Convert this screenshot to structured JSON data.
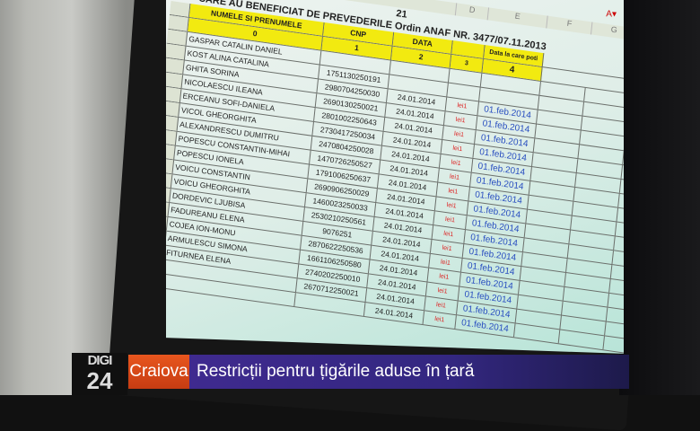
{
  "broadcast": {
    "channel_logo": "DIGI 24",
    "location": "Craiova",
    "headline": "Restricții pentru țigările aduse în țară"
  },
  "spreadsheet": {
    "cell_value": "21",
    "title": "CARE AU BENEFICIAT DE PREVEDERILE Ordin ANAF NR. 3477/07.11.2013",
    "column_letters": [
      "D",
      "E",
      "F",
      "G",
      "H"
    ],
    "headers": [
      "NUMELE SI PRENUMELE",
      "CNP",
      "DATA",
      "",
      "Data la care poti"
    ],
    "header_numbers": [
      "0",
      "1",
      "2",
      "3",
      "4"
    ],
    "rows": [
      {
        "name": "GASPAR CATALIN DANIEL",
        "cnp": "",
        "date": "",
        "flag": "",
        "date4": ""
      },
      {
        "name": "KOST ALINA CATALINA",
        "cnp": "1751130250191",
        "date": "",
        "flag": "",
        "date4": ""
      },
      {
        "name": "GHITA SORINA",
        "cnp": "2980704250030",
        "date": "24.01.2014",
        "flag": "lei1",
        "date4": "01.feb.2014"
      },
      {
        "name": "NICOLAESCU ILEANA",
        "cnp": "2690130250021",
        "date": "24.01.2014",
        "flag": "lei1",
        "date4": "01.feb.2014"
      },
      {
        "name": "ERCEANU SOFI-DANIELA",
        "cnp": "2801002250643",
        "date": "24.01.2014",
        "flag": "lei1",
        "date4": "01.feb.2014"
      },
      {
        "name": "VICOL GHEORGHITA",
        "cnp": "2730417250034",
        "date": "24.01.2014",
        "flag": "lei1",
        "date4": "01.feb.2014"
      },
      {
        "name": "ALEXANDRESCU DUMITRU",
        "cnp": "2470804250028",
        "date": "24.01.2014",
        "flag": "lei1",
        "date4": "01.feb.2014"
      },
      {
        "name": "POPESCU CONSTANTIN-MIHAI",
        "cnp": "1470726250527",
        "date": "24.01.2014",
        "flag": "lei1",
        "date4": "01.feb.2014"
      },
      {
        "name": "POPESCU IONELA",
        "cnp": "1791006250637",
        "date": "24.01.2014",
        "flag": "lei1",
        "date4": "01.feb.2014"
      },
      {
        "name": "VOICU CONSTANTIN",
        "cnp": "2690906250029",
        "date": "24.01.2014",
        "flag": "lei1",
        "date4": "01.feb.2014"
      },
      {
        "name": "VOICU GHEORGHITA",
        "cnp": "1460023250033",
        "date": "24.01.2014",
        "flag": "lei1",
        "date4": "01.feb.2014"
      },
      {
        "name": "DORDEVIC LJUBISA",
        "cnp": "2530210250561",
        "date": "24.01.2014",
        "flag": "lei1",
        "date4": "01.feb.2014"
      },
      {
        "name": "FADUREANU ELENA",
        "cnp": "9076251",
        "date": "24.01.2014",
        "flag": "lei1",
        "date4": "01.feb.2014"
      },
      {
        "name": "COJEA ION-MONU",
        "cnp": "2870622250536",
        "date": "24.01.2014",
        "flag": "lei1",
        "date4": "01.feb.2014"
      },
      {
        "name": "ARMULESCU SIMONA",
        "cnp": "1661106250580",
        "date": "24.01.2014",
        "flag": "lei1",
        "date4": "01.feb.2014"
      },
      {
        "name": "FITURNEA ELENA",
        "cnp": "2740202250010",
        "date": "24.01.2014",
        "flag": "lei1",
        "date4": "01.feb.2014"
      },
      {
        "name": "",
        "cnp": "2670712250021",
        "date": "24.01.2014",
        "flag": "lei1",
        "date4": "01.feb.2014"
      },
      {
        "name": "",
        "cnp": "",
        "date": "24.01.2014",
        "flag": "lei1",
        "date4": "01.feb.2014"
      }
    ]
  }
}
